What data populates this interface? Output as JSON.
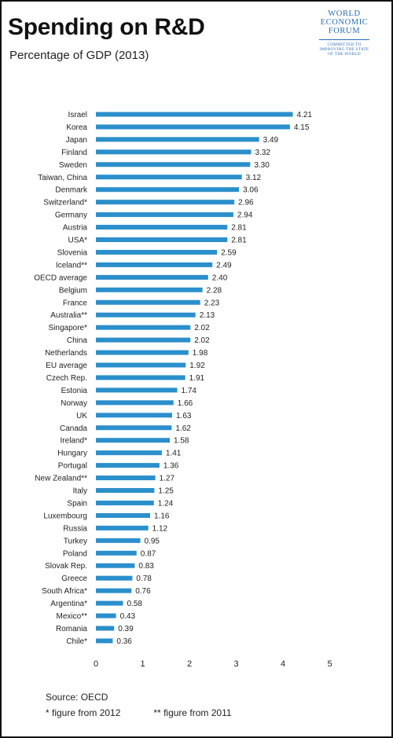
{
  "header": {
    "title": "Spending on R&D",
    "subtitle": "Percentage of GDP (2013)"
  },
  "logo": {
    "line1": "WORLD",
    "line2": "ECONOMIC",
    "line3": "FORUM",
    "tag1": "COMMITTED TO",
    "tag2": "IMPROVING THE STATE",
    "tag3": "OF THE WORLD"
  },
  "footer": {
    "source": "Source: OECD",
    "note1": "* figure from 2012",
    "note2": "** figure from 2011"
  },
  "colors": {
    "bar": "#2b8fcb",
    "text": "#222222"
  },
  "chart_data": {
    "type": "bar",
    "orientation": "horizontal",
    "categories": [
      "Israel",
      "Korea",
      "Japan",
      "Finland",
      "Sweden",
      "Taiwan, China",
      "Denmark",
      "Switzerland*",
      "Germany",
      "Austria",
      "USA*",
      "Slovenia",
      "Iceland**",
      "OECD average",
      "Belgium",
      "France",
      "Australia**",
      "Singapore*",
      "China",
      "Netherlands",
      "EU average",
      "Czech Rep.",
      "Estonia",
      "Norway",
      "UK",
      "Canada",
      "Ireland*",
      "Hungary",
      "Portugal",
      "New Zealand**",
      "Italy",
      "Spain",
      "Luxembourg",
      "Russia",
      "Turkey",
      "Poland",
      "Slovak Rep.",
      "Greece",
      "South Africa*",
      "Argentina*",
      "Mexico**",
      "Romania",
      "Chile*"
    ],
    "values": [
      4.21,
      4.15,
      3.49,
      3.32,
      3.3,
      3.12,
      3.06,
      2.96,
      2.94,
      2.81,
      2.81,
      2.59,
      2.49,
      2.4,
      2.28,
      2.23,
      2.13,
      2.02,
      2.02,
      1.98,
      1.92,
      1.91,
      1.74,
      1.66,
      1.63,
      1.62,
      1.58,
      1.41,
      1.36,
      1.27,
      1.25,
      1.24,
      1.16,
      1.12,
      0.95,
      0.87,
      0.83,
      0.78,
      0.76,
      0.58,
      0.43,
      0.39,
      0.36
    ],
    "value_labels": [
      "4.21",
      "4.15",
      "3.49",
      "3.32",
      "3.30",
      "3.12",
      "3.06",
      "2.96",
      "2.94",
      "2.81",
      "2.81",
      "2.59",
      "2.49",
      "2.40",
      "2.28",
      "2.23",
      "2.13",
      "2.02",
      "2.02",
      "1.98",
      "1.92",
      "1.91",
      "1.74",
      "1.66",
      "1.63",
      "1.62",
      "1.58",
      "1.41",
      "1.36",
      "1.27",
      "1.25",
      "1.24",
      "1.16",
      "1.12",
      "0.95",
      "0.87",
      "0.83",
      "0.78",
      "0.76",
      "0.58",
      "0.43",
      "0.39",
      "0.36"
    ],
    "xticks": [
      "0",
      "1",
      "2",
      "3",
      "4",
      "5"
    ],
    "xlim": [
      0,
      5
    ],
    "title": "Spending on R&D",
    "subtitle": "Percentage of GDP (2013)",
    "grid": false,
    "legend": "none"
  }
}
